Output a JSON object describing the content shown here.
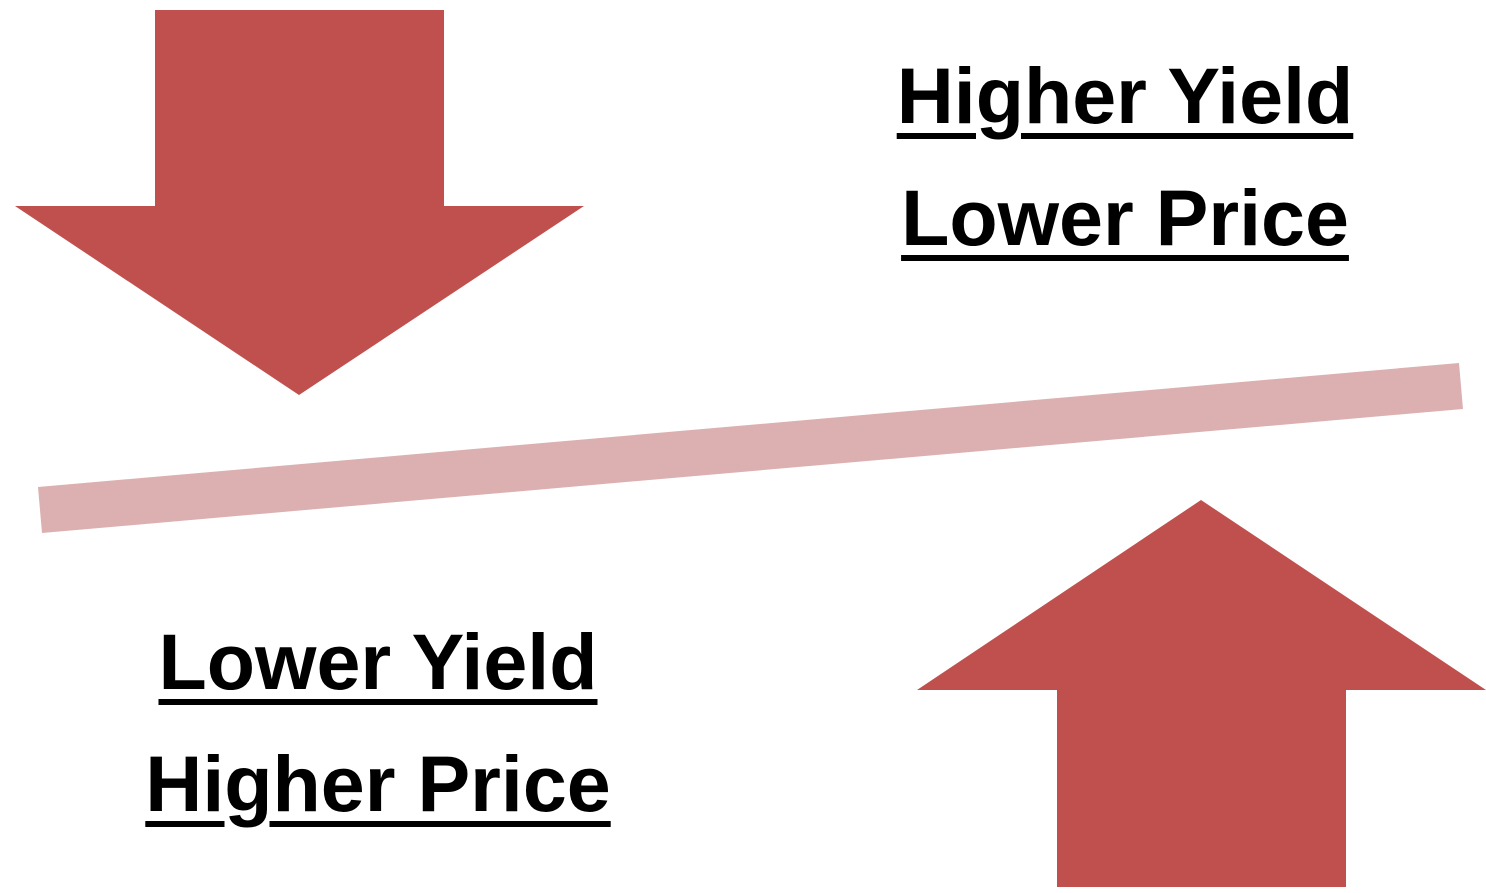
{
  "colors": {
    "arrow": "#c0504d",
    "seesaw": "#dcb0b0",
    "text": "#000000",
    "background": "#ffffff"
  },
  "top_right": {
    "line1": "Higher Yield",
    "line2": "Lower Price"
  },
  "bottom_left": {
    "line1": "Lower Yield",
    "line2": "Higher Price"
  },
  "icons": {
    "down_arrow": "down-arrow-icon",
    "up_arrow": "up-arrow-icon",
    "seesaw": "seesaw-bar"
  }
}
